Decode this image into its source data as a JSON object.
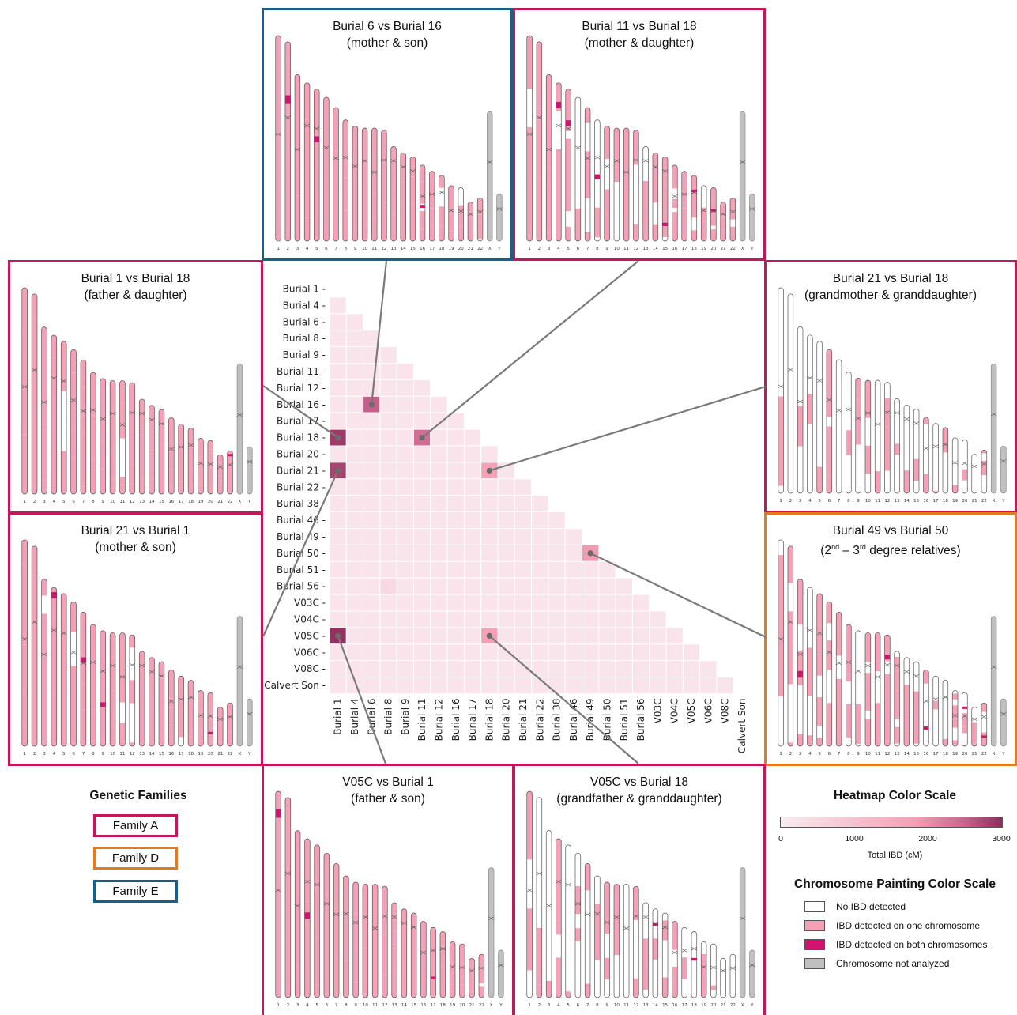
{
  "colors": {
    "family_a": "#c2185b",
    "family_d": "#e07b1f",
    "family_e": "#1a5f8a",
    "no_ibd": "#ffffff",
    "ibd_one": "#f4a0b5",
    "ibd_both": "#d4136e",
    "not_analyzed": "#c0c0c0",
    "heat_low": "#f7e8ee",
    "heat_high": "#9c3566"
  },
  "chromosome_labels": [
    "1",
    "2",
    "3",
    "4",
    "5",
    "6",
    "7",
    "8",
    "9",
    "10",
    "11",
    "12",
    "13",
    "14",
    "15",
    "16",
    "17",
    "18",
    "19",
    "20",
    "21",
    "22",
    "X",
    "Y"
  ],
  "panels": [
    {
      "id": "b6-b16",
      "title": "Burial 6 vs Burial 16",
      "subtitle": "(mother & son)",
      "family": "E"
    },
    {
      "id": "b11-b18",
      "title": "Burial 11 vs Burial 18",
      "subtitle": "(mother & daughter)",
      "family": "A"
    },
    {
      "id": "b1-b18",
      "title": "Burial 1 vs Burial 18",
      "subtitle": "(father & daughter)",
      "family": "A"
    },
    {
      "id": "b21-b18",
      "title": "Burial 21 vs Burial 18",
      "subtitle": "(grandmother & granddaughter)",
      "family": "A"
    },
    {
      "id": "b21-b1",
      "title": "Burial 21 vs Burial 1",
      "subtitle": "(mother & son)",
      "family": "A"
    },
    {
      "id": "b49-b50",
      "title": "Burial 49 vs Burial 50",
      "subtitle_pre": "(2",
      "subtitle_sup1": "nd",
      "subtitle_mid": " – 3",
      "subtitle_sup2": "rd",
      "subtitle_post": " degree relatives)",
      "family": "D"
    },
    {
      "id": "v05c-b1",
      "title": "V05C vs Burial 1",
      "subtitle": "(father & son)",
      "family": "A"
    },
    {
      "id": "v05c-b18",
      "title": "V05C vs Burial 18",
      "subtitle": "(grandfather & granddaughter)",
      "family": "A"
    }
  ],
  "heatmap": {
    "labels": [
      "Burial 1",
      "Burial 4",
      "Burial 6",
      "Burial 8",
      "Burial 9",
      "Burial 11",
      "Burial 12",
      "Burial 16",
      "Burial 17",
      "Burial 18",
      "Burial 20",
      "Burial 21",
      "Burial 22",
      "Burial 38",
      "Burial 46",
      "Burial 49",
      "Burial 50",
      "Burial 51",
      "Burial 56",
      "V03C",
      "V04C",
      "V05C",
      "V06C",
      "V08C",
      "Calvert Son"
    ],
    "highlights": [
      {
        "row": "Burial 16",
        "col": "Burial 6",
        "value": 2500
      },
      {
        "row": "Burial 18",
        "col": "Burial 1",
        "value": 2900
      },
      {
        "row": "Burial 18",
        "col": "Burial 11",
        "value": 2300
      },
      {
        "row": "Burial 21",
        "col": "Burial 1",
        "value": 2800
      },
      {
        "row": "Burial 21",
        "col": "Burial 18",
        "value": 1300
      },
      {
        "row": "Burial 50",
        "col": "Burial 49",
        "value": 1450
      },
      {
        "row": "V05C",
        "col": "Burial 1",
        "value": 3000
      },
      {
        "row": "V05C",
        "col": "Burial 18",
        "value": 1350
      },
      {
        "row": "Burial 56",
        "col": "Burial 8",
        "value": 350
      }
    ],
    "background_value": 150
  },
  "genetic_families": {
    "title": "Genetic Families",
    "items": [
      {
        "label": "Family A",
        "color": "#c2185b"
      },
      {
        "label": "Family D",
        "color": "#e07b1f"
      },
      {
        "label": "Family E",
        "color": "#1a5f8a"
      }
    ]
  },
  "heatmap_scale": {
    "title": "Heatmap Color Scale",
    "ticks": [
      "0",
      "1000",
      "2000",
      "3000"
    ],
    "tick_values": [
      0,
      1000,
      2000,
      3000
    ],
    "max": 3000,
    "axis_label": "Total IBD (cM)"
  },
  "chromosome_scale": {
    "title": "Chromosome Painting Color Scale",
    "items": [
      {
        "label": "No IBD detected",
        "color": "#ffffff"
      },
      {
        "label": "IBD detected on one chromosome",
        "color": "#f4a0b5"
      },
      {
        "label": "IBD detected on both chromosomes",
        "color": "#d4136e"
      },
      {
        "label": "Chromosome not analyzed",
        "color": "#c0c0c0"
      }
    ]
  }
}
